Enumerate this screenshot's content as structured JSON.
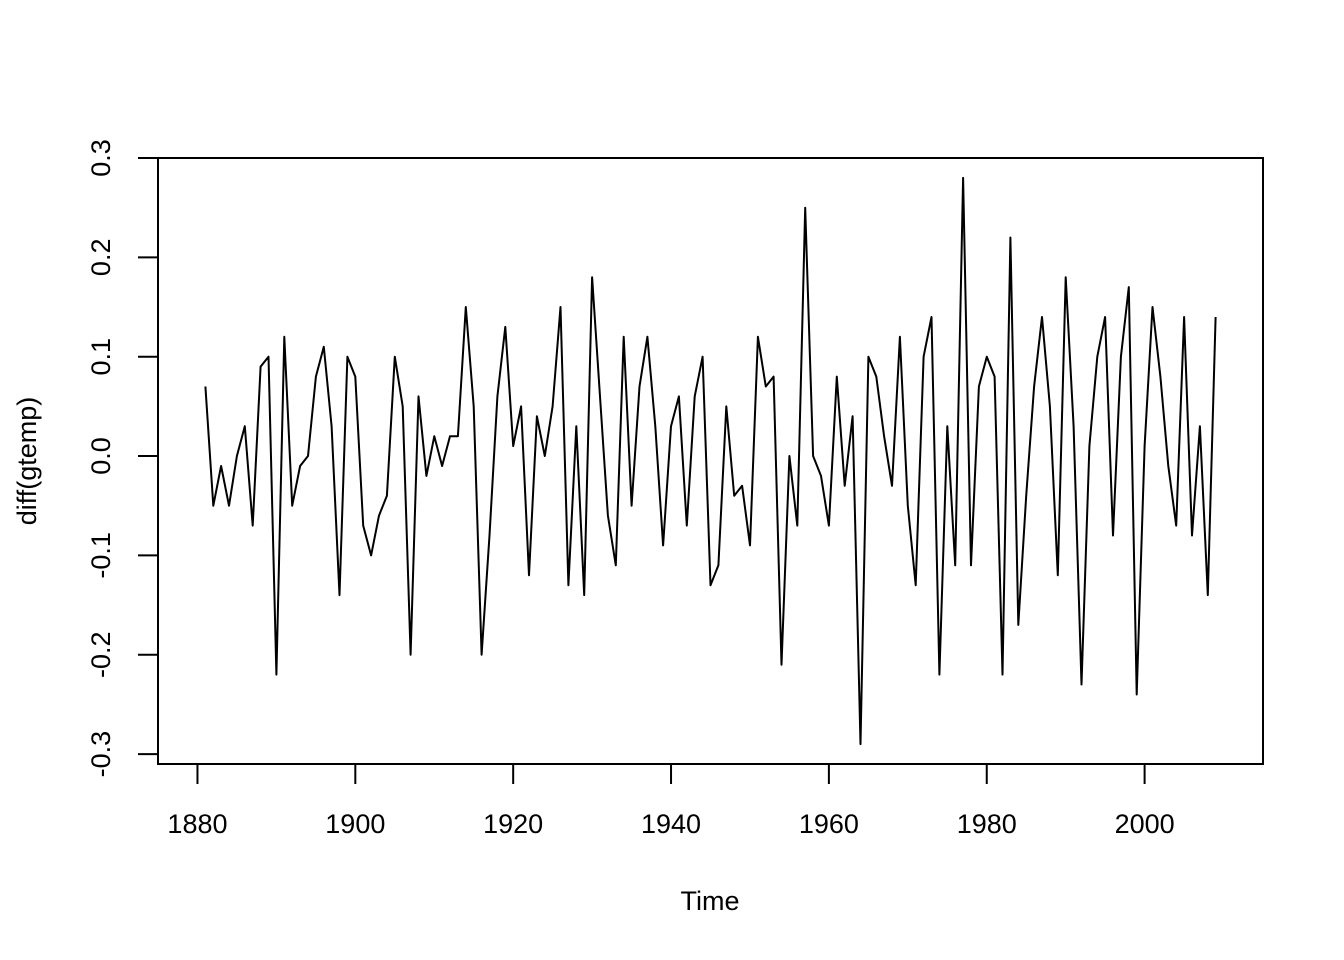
{
  "chart_data": {
    "type": "line",
    "xlabel": "Time",
    "ylabel": "diff(gtemp)",
    "xlim": [
      1875,
      2015
    ],
    "ylim": [
      -0.31,
      0.3
    ],
    "x_ticks": [
      1880,
      1900,
      1920,
      1940,
      1960,
      1980,
      2000
    ],
    "y_ticks": [
      -0.3,
      -0.2,
      -0.1,
      0.0,
      0.1,
      0.2,
      0.3
    ],
    "y_tick_labels": [
      "-0.3",
      "-0.2",
      "-0.1",
      "0.0",
      "0.1",
      "0.2",
      "0.3"
    ],
    "x_tick_labels": [
      "1880",
      "1900",
      "1920",
      "1940",
      "1960",
      "1980",
      "2000"
    ],
    "grid": false,
    "line_color": "#000000",
    "series": [
      {
        "x_start": 1881,
        "x_step": 1,
        "values": [
          0.07,
          -0.05,
          -0.01,
          -0.05,
          0.0,
          0.03,
          -0.07,
          0.09,
          0.1,
          -0.22,
          0.12,
          -0.05,
          -0.01,
          0.0,
          0.08,
          0.11,
          0.03,
          -0.14,
          0.1,
          0.08,
          -0.07,
          -0.1,
          -0.06,
          -0.04,
          0.1,
          0.05,
          -0.2,
          0.06,
          -0.02,
          0.02,
          -0.01,
          0.02,
          0.02,
          0.15,
          0.05,
          -0.2,
          -0.08,
          0.06,
          0.13,
          0.01,
          0.05,
          -0.12,
          0.04,
          0.0,
          0.05,
          0.15,
          -0.13,
          0.03,
          -0.14,
          0.18,
          0.06,
          -0.06,
          -0.11,
          0.12,
          -0.05,
          0.07,
          0.12,
          0.03,
          -0.09,
          0.03,
          0.06,
          -0.07,
          0.06,
          0.1,
          -0.13,
          -0.11,
          0.05,
          -0.04,
          -0.03,
          -0.09,
          0.12,
          0.07,
          0.08,
          -0.21,
          0.0,
          -0.07,
          0.25,
          0.0,
          -0.02,
          -0.07,
          0.08,
          -0.03,
          0.04,
          -0.29,
          0.1,
          0.08,
          0.02,
          -0.03,
          0.12,
          -0.05,
          -0.13,
          0.1,
          0.14,
          -0.22,
          0.03,
          -0.11,
          0.28,
          -0.11,
          0.07,
          0.1,
          0.08,
          -0.22,
          0.22,
          -0.17,
          -0.04,
          0.07,
          0.14,
          0.05,
          -0.12,
          0.18,
          0.03,
          -0.23,
          0.01,
          0.1,
          0.14,
          -0.08,
          0.1,
          0.17,
          -0.24,
          0.01,
          0.15,
          0.08,
          -0.01,
          -0.07,
          0.14,
          -0.08,
          0.03,
          -0.14,
          0.14
        ]
      }
    ]
  }
}
